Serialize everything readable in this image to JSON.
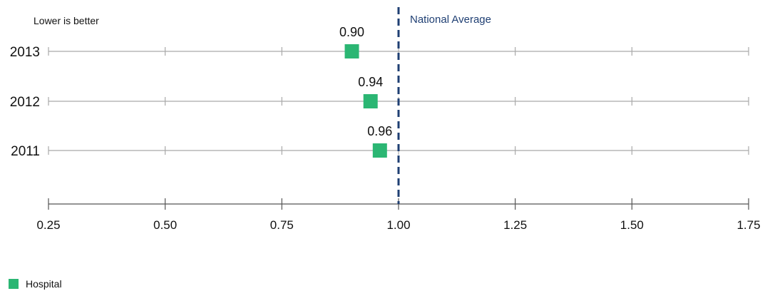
{
  "chart_data": {
    "type": "scatter",
    "subtitle": "Lower is better",
    "categories": [
      "2013",
      "2012",
      "2011"
    ],
    "series": [
      {
        "name": "Hospital",
        "color": "#2bb673",
        "values": [
          0.9,
          0.94,
          0.96
        ],
        "value_labels": [
          "0.90",
          "0.94",
          "0.96"
        ]
      }
    ],
    "reference_line": {
      "label": "National Average",
      "value": 1.0,
      "style": "dashed",
      "color": "#1f3f73"
    },
    "xlim": [
      0.25,
      1.75
    ],
    "x_ticks": [
      0.25,
      0.5,
      0.75,
      1.0,
      1.25,
      1.5,
      1.75
    ],
    "x_tick_labels": [
      "0.25",
      "0.50",
      "0.75",
      "1.00",
      "1.25",
      "1.50",
      "1.75"
    ],
    "grid": false,
    "legend_position": "bottom-left"
  }
}
